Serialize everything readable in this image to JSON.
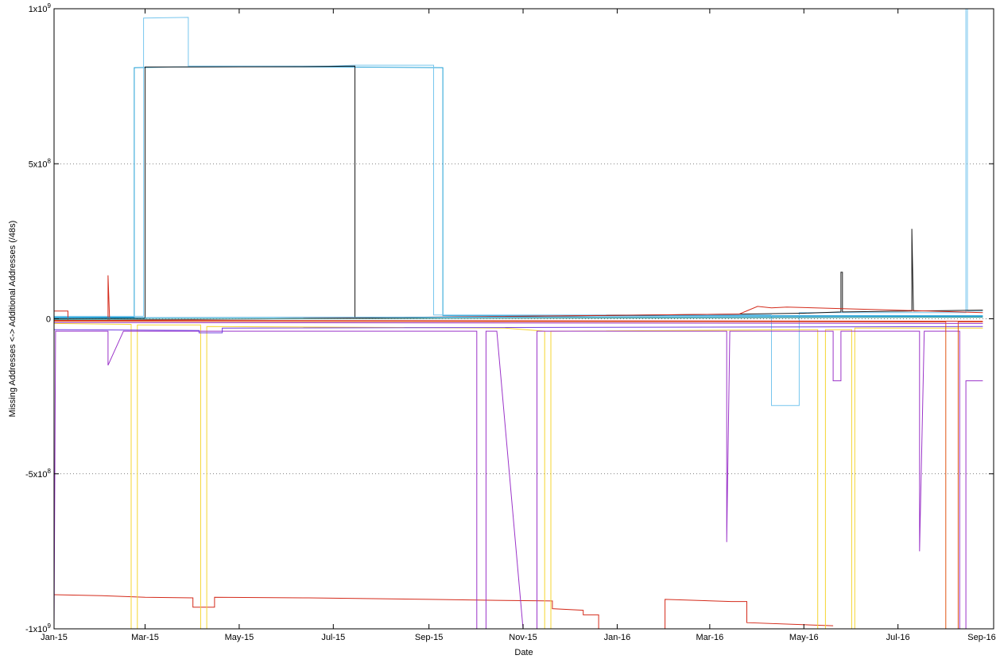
{
  "chart_data": {
    "type": "line",
    "title": "",
    "xlabel": "Date",
    "ylabel": "Missing Addresses <-> Additional Addresses (/48s)",
    "x_range": [
      "2015-01-01",
      "2016-09-01"
    ],
    "ylim": [
      -1000000000,
      1000000000
    ],
    "grid": "horizontal dotted at y ticks",
    "legend": "none",
    "x_ticks": [
      {
        "date": "2015-01-01",
        "label": "Jan-15"
      },
      {
        "date": "2015-03-01",
        "label": "Mar-15"
      },
      {
        "date": "2015-05-01",
        "label": "May-15"
      },
      {
        "date": "2015-07-01",
        "label": "Jul-15"
      },
      {
        "date": "2015-09-01",
        "label": "Sep-15"
      },
      {
        "date": "2015-11-01",
        "label": "Nov-15"
      },
      {
        "date": "2016-01-01",
        "label": "Jan-16"
      },
      {
        "date": "2016-03-01",
        "label": "Mar-16"
      },
      {
        "date": "2016-05-01",
        "label": "May-16"
      },
      {
        "date": "2016-07-01",
        "label": "Jul-16"
      },
      {
        "date": "2016-09-01",
        "label": "Sep-16"
      }
    ],
    "y_ticks": [
      {
        "value": 1000000000,
        "base": "1x10",
        "exp": "9"
      },
      {
        "value": 500000000,
        "base": "5x10",
        "exp": "8"
      },
      {
        "value": 0,
        "base": "0",
        "exp": ""
      },
      {
        "value": -500000000,
        "base": "-5x10",
        "exp": "8"
      },
      {
        "value": -1000000000,
        "base": "-1x10",
        "exp": "9"
      }
    ],
    "series": [
      {
        "color": "#1f9fd6",
        "points": [
          [
            "2015-01-01",
            5000000
          ],
          [
            "2015-02-22",
            5000000
          ],
          [
            "2015-02-22",
            810000000
          ],
          [
            "2015-03-20",
            812000000
          ],
          [
            "2015-05-01",
            813000000
          ],
          [
            "2015-07-10",
            812000000
          ],
          [
            "2015-09-10",
            810000000
          ],
          [
            "2015-09-10",
            10000000
          ],
          [
            "2016-08-25",
            10000000
          ]
        ]
      },
      {
        "color": "#77c6ee",
        "points": [
          [
            "2015-01-01",
            8000000
          ],
          [
            "2015-02-28",
            8000000
          ],
          [
            "2015-02-28",
            970000000
          ],
          [
            "2015-03-29",
            972000000
          ],
          [
            "2015-03-29",
            815000000
          ],
          [
            "2015-06-28",
            815000000
          ],
          [
            "2015-07-15",
            818000000
          ],
          [
            "2015-09-04",
            818000000
          ],
          [
            "2015-09-04",
            12000000
          ],
          [
            "2016-04-10",
            12000000
          ],
          [
            "2016-04-10",
            -280000000
          ],
          [
            "2016-04-28",
            -280000000
          ],
          [
            "2016-04-28",
            20000000
          ],
          [
            "2016-08-14",
            20000000
          ],
          [
            "2016-08-14",
            1000000000
          ],
          [
            "2016-08-15",
            1000000000
          ],
          [
            "2016-08-15",
            25000000
          ],
          [
            "2016-08-25",
            25000000
          ]
        ]
      },
      {
        "color": "#1a1a1a",
        "points": [
          [
            "2015-01-01",
            0
          ],
          [
            "2015-03-01",
            2000000
          ],
          [
            "2015-03-01",
            812000000
          ],
          [
            "2015-06-10",
            813000000
          ],
          [
            "2015-07-15",
            815000000
          ],
          [
            "2015-07-15",
            2000000
          ],
          [
            "2016-03-20",
            15000000
          ],
          [
            "2016-05-01",
            18000000
          ],
          [
            "2016-05-25",
            22000000
          ],
          [
            "2016-05-25",
            150000000
          ],
          [
            "2016-05-26",
            150000000
          ],
          [
            "2016-05-26",
            22000000
          ],
          [
            "2016-07-10",
            25000000
          ],
          [
            "2016-07-10",
            290000000
          ],
          [
            "2016-07-11",
            25000000
          ],
          [
            "2016-08-25",
            28000000
          ]
        ]
      },
      {
        "color": "#d42a1a",
        "points": [
          [
            "2015-01-01",
            -890000000
          ],
          [
            "2015-02-01",
            -893000000
          ],
          [
            "2015-03-01",
            -898000000
          ],
          [
            "2015-04-01",
            -900000000
          ],
          [
            "2015-04-01",
            -930000000
          ],
          [
            "2015-04-15",
            -930000000
          ],
          [
            "2015-04-15",
            -898000000
          ],
          [
            "2015-06-15",
            -900000000
          ],
          [
            "2015-08-01",
            -903000000
          ],
          [
            "2015-09-01",
            -905000000
          ],
          [
            "2015-10-15",
            -908000000
          ],
          [
            "2015-11-20",
            -910000000
          ],
          [
            "2015-11-20",
            -935000000
          ],
          [
            "2015-12-10",
            -940000000
          ],
          [
            "2015-12-10",
            -955000000
          ],
          [
            "2015-12-20",
            -955000000
          ],
          [
            "2015-12-20",
            -1000000000
          ]
        ]
      },
      {
        "color": "#d42a1a",
        "points": [
          [
            "2016-02-01",
            -1000000000
          ],
          [
            "2016-02-01",
            -905000000
          ],
          [
            "2016-03-15",
            -912000000
          ],
          [
            "2016-03-25",
            -912000000
          ],
          [
            "2016-03-25",
            -980000000
          ],
          [
            "2016-05-20",
            -990000000
          ]
        ]
      },
      {
        "color": "#d42a1a",
        "points": [
          [
            "2015-01-01",
            25000000
          ],
          [
            "2015-01-10",
            25000000
          ],
          [
            "2015-01-10",
            -5000000
          ],
          [
            "2015-02-05",
            -5000000
          ],
          [
            "2015-02-05",
            140000000
          ],
          [
            "2015-02-06",
            -5000000
          ],
          [
            "2016-03-20",
            15000000
          ],
          [
            "2016-04-01",
            40000000
          ],
          [
            "2016-04-10",
            35000000
          ],
          [
            "2016-04-20",
            38000000
          ],
          [
            "2016-08-25",
            20000000
          ]
        ]
      },
      {
        "color": "#f5d531",
        "points": [
          [
            "2015-01-01",
            -15000000
          ],
          [
            "2015-02-20",
            -18000000
          ],
          [
            "2015-02-20",
            -1000000000
          ],
          [
            "2015-02-24",
            -1000000000
          ],
          [
            "2015-02-24",
            -20000000
          ],
          [
            "2015-04-06",
            -20000000
          ],
          [
            "2015-04-06",
            -1000000000
          ],
          [
            "2015-04-10",
            -1000000000
          ],
          [
            "2015-04-10",
            -25000000
          ],
          [
            "2015-10-20",
            -30000000
          ],
          [
            "2015-11-15",
            -40000000
          ],
          [
            "2015-11-15",
            -1000000000
          ],
          [
            "2015-11-19",
            -1000000000
          ],
          [
            "2015-11-19",
            -40000000
          ],
          [
            "2016-05-10",
            -35000000
          ],
          [
            "2016-05-10",
            -1000000000
          ],
          [
            "2016-05-15",
            -1000000000
          ],
          [
            "2016-05-15",
            -35000000
          ],
          [
            "2016-06-01",
            -35000000
          ],
          [
            "2016-06-01",
            -1000000000
          ],
          [
            "2016-06-03",
            -1000000000
          ],
          [
            "2016-06-03",
            -30000000
          ],
          [
            "2016-08-25",
            -30000000
          ]
        ]
      },
      {
        "color": "#9b34c9",
        "points": [
          [
            "2015-01-01",
            -1000000000
          ],
          [
            "2015-01-02",
            -40000000
          ],
          [
            "2015-02-05",
            -40000000
          ],
          [
            "2015-02-05",
            -150000000
          ],
          [
            "2015-02-15",
            -40000000
          ],
          [
            "2015-10-02",
            -40000000
          ],
          [
            "2015-10-02",
            -1000000000
          ],
          [
            "2015-10-08",
            -1000000000
          ],
          [
            "2015-10-08",
            -40000000
          ],
          [
            "2015-10-15",
            -40000000
          ],
          [
            "2015-11-01",
            -1000000000
          ],
          [
            "2015-11-10",
            -1000000000
          ],
          [
            "2015-11-10",
            -40000000
          ],
          [
            "2016-03-12",
            -40000000
          ],
          [
            "2016-03-12",
            -720000000
          ],
          [
            "2016-03-14",
            -40000000
          ],
          [
            "2016-05-20",
            -40000000
          ],
          [
            "2016-05-20",
            -200000000
          ],
          [
            "2016-05-25",
            -200000000
          ],
          [
            "2016-05-25",
            -40000000
          ],
          [
            "2016-07-15",
            -40000000
          ],
          [
            "2016-07-15",
            -750000000
          ],
          [
            "2016-07-18",
            -40000000
          ],
          [
            "2016-08-10",
            -40000000
          ],
          [
            "2016-08-10",
            -1000000000
          ],
          [
            "2016-08-14",
            -1000000000
          ],
          [
            "2016-08-14",
            -200000000
          ],
          [
            "2016-08-25",
            -200000000
          ]
        ]
      },
      {
        "color": "#6f3ce0",
        "points": [
          [
            "2015-01-01",
            -35000000
          ],
          [
            "2015-04-05",
            -38000000
          ],
          [
            "2015-04-05",
            -45000000
          ],
          [
            "2015-04-20",
            -45000000
          ],
          [
            "2015-04-20",
            -30000000
          ],
          [
            "2016-08-25",
            -25000000
          ]
        ]
      },
      {
        "color": "#e05515",
        "points": [
          [
            "2015-01-01",
            -8000000
          ],
          [
            "2016-08-01",
            -10000000
          ],
          [
            "2016-08-01",
            -1000000000
          ],
          [
            "2016-08-09",
            -1000000000
          ],
          [
            "2016-08-09",
            -10000000
          ],
          [
            "2016-08-25",
            -10000000
          ]
        ]
      },
      {
        "color": "#2a8f8a",
        "points": [
          [
            "2015-01-01",
            -2000000
          ],
          [
            "2016-08-25",
            5000000
          ]
        ]
      },
      {
        "color": "#9b34c9",
        "points": [
          [
            "2015-01-01",
            -12000000
          ],
          [
            "2016-08-25",
            -15000000
          ]
        ]
      },
      {
        "color": "#d42a1a",
        "points": [
          [
            "2015-01-01",
            -5000000
          ],
          [
            "2016-08-25",
            -8000000
          ]
        ]
      },
      {
        "color": "#1f9fd6",
        "points": [
          [
            "2015-01-01",
            3000000
          ],
          [
            "2016-08-25",
            8000000
          ]
        ]
      }
    ]
  }
}
